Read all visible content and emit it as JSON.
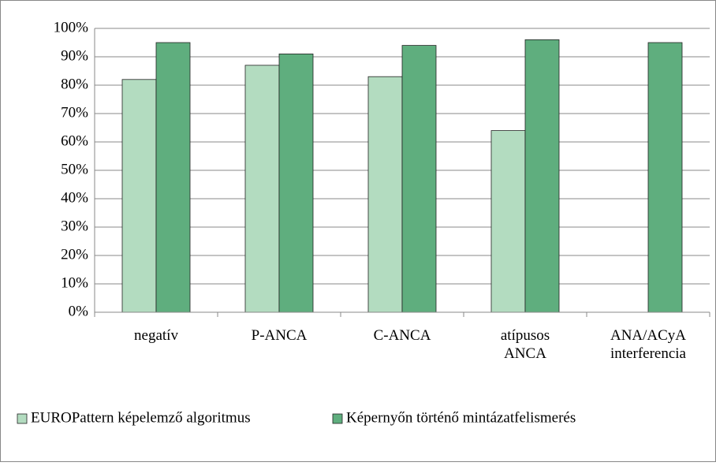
{
  "chart_data": {
    "type": "bar",
    "categories": [
      "negatív",
      "P-ANCA",
      "C-ANCA",
      "atípusos\nANCA",
      "ANA/ACyA\ninterferencia"
    ],
    "series": [
      {
        "name": "EUROPattern képelemző algoritmus",
        "color": "#b3dcc0",
        "values": [
          82,
          87,
          83,
          64,
          null
        ]
      },
      {
        "name": "Képernyőn történő mintázatfelismerés",
        "color": "#5fae7e",
        "values": [
          95,
          91,
          94,
          96,
          95
        ]
      }
    ],
    "ylim": [
      0,
      100
    ],
    "yticks": [
      {
        "value": 0,
        "label": "0%"
      },
      {
        "value": 10,
        "label": "10%"
      },
      {
        "value": 20,
        "label": "20%"
      },
      {
        "value": 30,
        "label": "30%"
      },
      {
        "value": 40,
        "label": "40%"
      },
      {
        "value": 50,
        "label": "50%"
      },
      {
        "value": 60,
        "label": "60%"
      },
      {
        "value": 70,
        "label": "70%"
      },
      {
        "value": 80,
        "label": "80%"
      },
      {
        "value": 90,
        "label": "90%"
      },
      {
        "value": 100,
        "label": "100%"
      }
    ],
    "grid": true,
    "legend": "bottom"
  }
}
